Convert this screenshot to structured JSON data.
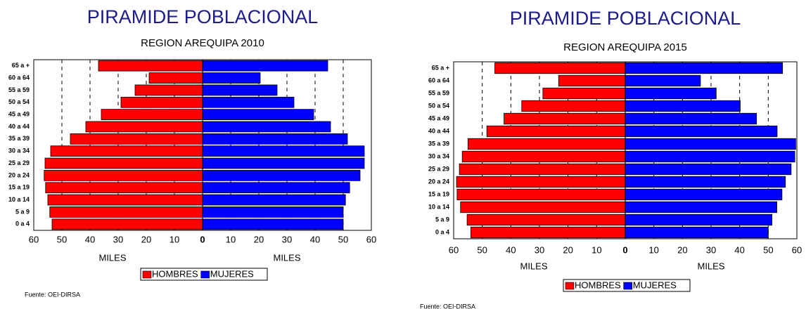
{
  "chart_data": [
    {
      "type": "pyramid",
      "title": "PIRAMIDE POBLACIONAL",
      "subtitle": "REGION AREQUIPA  2010",
      "categories": [
        "65 a +",
        "60 a 64",
        "55 a 59",
        "50 a 54",
        "45 a 49",
        "40 a 44",
        "35 a 39",
        "30 a 34",
        "25 a 29",
        "20 a 24",
        "15 a 19",
        "10 a 14",
        "5 a 9",
        "0 a 4"
      ],
      "series": [
        {
          "name": "HOMBRES",
          "color": "#ff0000",
          "values": [
            37,
            19,
            24,
            29,
            36,
            41.5,
            47,
            54,
            56,
            56.3,
            55.8,
            55,
            54.3,
            53.5
          ]
        },
        {
          "name": "MUJERES",
          "color": "#0000ff",
          "values": [
            44.5,
            20.5,
            26.5,
            32.5,
            39.5,
            45.5,
            51.5,
            57.5,
            57.5,
            56,
            52.3,
            50.8,
            50,
            50
          ]
        }
      ],
      "xlim": [
        0,
        60
      ],
      "xticks": [
        0,
        10,
        20,
        30,
        40,
        50,
        60
      ],
      "grid": true,
      "xlabel": "MILES",
      "source": "Fuente: OEI-DIRSA"
    },
    {
      "type": "pyramid",
      "title": "PIRAMIDE POBLACIONAL",
      "subtitle": "REGION AREQUIPA  2015",
      "categories": [
        "65 a +",
        "60 a 64",
        "55 a 59",
        "50 a 54",
        "45 a 49",
        "40 a 44",
        "35 a 39",
        "30 a 34",
        "25 a 29",
        "20 a 24",
        "15 a 19",
        "10 a 14",
        "5 a 9",
        "0 a 4"
      ],
      "series": [
        {
          "name": "HOMBRES",
          "color": "#ff0000",
          "values": [
            45.6,
            23.3,
            28.8,
            36.2,
            42.4,
            48.4,
            55,
            57,
            58,
            59,
            58.8,
            57.6,
            55.3,
            54
          ]
        },
        {
          "name": "MUJERES",
          "color": "#0000ff",
          "values": [
            55,
            26.3,
            31.8,
            40.2,
            45.9,
            53.1,
            59.6,
            59.3,
            58,
            56,
            54.8,
            53,
            51.3,
            50
          ]
        }
      ],
      "xlim": [
        0,
        60
      ],
      "xticks": [
        0,
        10,
        20,
        30,
        40,
        50,
        60
      ],
      "grid": true,
      "xlabel": "MILES",
      "source": "Fuente: OEI-DIRSA"
    }
  ]
}
